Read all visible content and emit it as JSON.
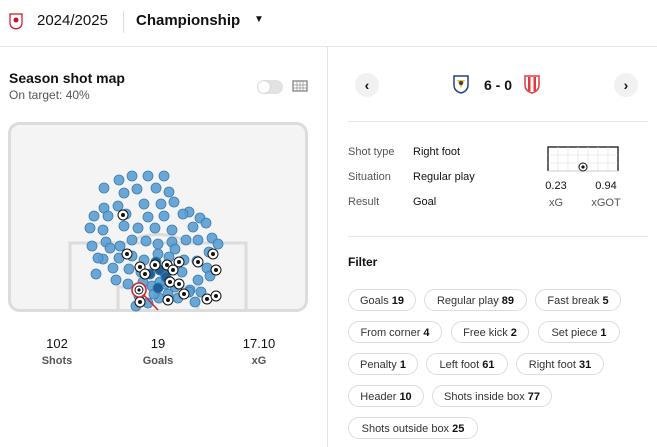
{
  "header": {
    "season": "2024/2025",
    "league": "Championship",
    "caret": "▼",
    "logo_icon": "league-logo-icon"
  },
  "shotmap": {
    "title": "Season shot map",
    "subtitle": "On target: 40%",
    "toggle_on": false,
    "stats": [
      {
        "value": "102",
        "label": "Shots"
      },
      {
        "value": "19",
        "label": "Goals"
      },
      {
        "value": "17.10",
        "label": "xG"
      }
    ],
    "colors": {
      "shot": "#5b9fd1",
      "shot_stroke": "#3b7db4",
      "blocked": "#1f5f97",
      "selected": "#d6262b"
    }
  },
  "match": {
    "prev": "‹",
    "next": "›",
    "score": "6 - 0",
    "home_crest": "leeds-crest-icon",
    "away_crest": "stoke-crest-icon",
    "details": [
      {
        "label": "Shot type",
        "value": "Right foot"
      },
      {
        "label": "Situation",
        "value": "Regular play"
      },
      {
        "label": "Result",
        "value": "Goal"
      }
    ],
    "xg": {
      "value": "0.23",
      "label": "xG"
    },
    "xgot": {
      "value": "0.94",
      "label": "xGOT"
    }
  },
  "filter": {
    "title": "Filter",
    "chips": [
      {
        "label": "Goals",
        "count": "19"
      },
      {
        "label": "Regular play",
        "count": "89"
      },
      {
        "label": "Fast break",
        "count": "5"
      },
      {
        "label": "From corner",
        "count": "4"
      },
      {
        "label": "Free kick",
        "count": "2"
      },
      {
        "label": "Set piece",
        "count": "1"
      },
      {
        "label": "Penalty",
        "count": "1"
      },
      {
        "label": "Left foot",
        "count": "61"
      },
      {
        "label": "Right foot",
        "count": "31"
      },
      {
        "label": "Header",
        "count": "10"
      },
      {
        "label": "Shots inside box",
        "count": "77"
      },
      {
        "label": "Shots outside box",
        "count": "25"
      }
    ]
  }
}
